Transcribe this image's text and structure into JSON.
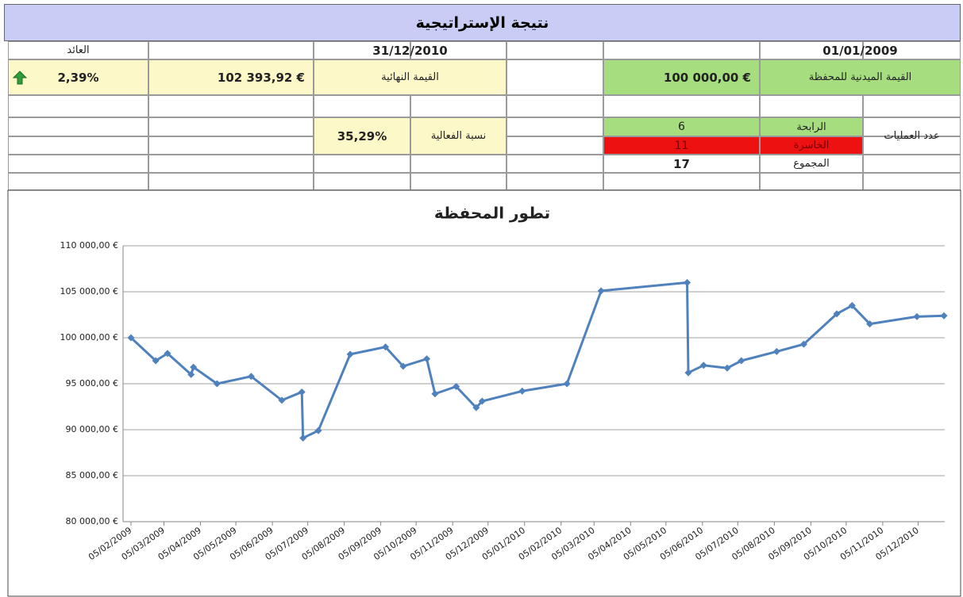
{
  "header": {
    "title": "نتيجة الإستراتيجية"
  },
  "table": {
    "return_label": "العائد",
    "end_date": "31/12/2010",
    "start_date": "01/01/2009",
    "return_value": "2,39%",
    "final_value": "102 393,92 €",
    "final_label": "القيمة النهائية",
    "initial_value": "100 000,00 €",
    "initial_label": "القيمة الميدنية للمحفظة",
    "efficiency_value": "35,29%",
    "efficiency_label": "نسبة الفعالية",
    "trades_label": "عدد العمليات",
    "winning_label": "الرابحة",
    "winning_count": 6,
    "losing_label": "الخاسرة",
    "losing_count": 11,
    "total_label": "المجموع",
    "total_count": 17
  },
  "chart_data": {
    "type": "line",
    "title": "تطور المحفظة",
    "color": "#4f81bd",
    "grid": true,
    "x": [
      "05/02/2009",
      "26/02/2009",
      "08/03/2009",
      "28/03/2009",
      "30/03/2009",
      "19/04/2009",
      "18/05/2009",
      "13/06/2009",
      "30/06/2009",
      "01/07/2009",
      "14/07/2009",
      "10/08/2009",
      "09/09/2009",
      "24/09/2009",
      "14/10/2009",
      "21/10/2009",
      "08/11/2009",
      "25/11/2009",
      "30/11/2009",
      "03/01/2010",
      "10/02/2010",
      "11/03/2010",
      "23/05/2010",
      "24/05/2010",
      "06/06/2010",
      "26/06/2010",
      "08/07/2010",
      "07/08/2010",
      "30/08/2010",
      "27/09/2010",
      "10/10/2010",
      "25/10/2010",
      "04/12/2010",
      "27/12/2010"
    ],
    "values": [
      100000,
      97500,
      98300,
      96000,
      96800,
      95000,
      95800,
      93200,
      94100,
      89100,
      89900,
      98200,
      99000,
      96900,
      97700,
      93900,
      94700,
      92400,
      93100,
      94200,
      95000,
      105100,
      106000,
      96200,
      97000,
      96700,
      97500,
      98500,
      99300,
      102600,
      103500,
      101500,
      102300,
      102393.92
    ],
    "xlim": [
      "05/02/2009",
      "31/12/2010"
    ],
    "xticks": [
      "05/02/2009",
      "05/03/2009",
      "05/04/2009",
      "05/05/2009",
      "05/06/2009",
      "05/07/2009",
      "05/08/2009",
      "05/09/2009",
      "05/10/2009",
      "05/11/2009",
      "05/12/2009",
      "05/01/2010",
      "05/02/2010",
      "05/03/2010",
      "05/04/2010",
      "05/05/2010",
      "05/06/2010",
      "05/07/2010",
      "05/08/2010",
      "05/09/2010",
      "05/10/2010",
      "05/11/2010",
      "05/12/2010"
    ],
    "ylim": [
      80000,
      110000
    ],
    "yticks": [
      {
        "value": 80000,
        "label": "80 000,00 €"
      },
      {
        "value": 85000,
        "label": "85 000,00 €"
      },
      {
        "value": 90000,
        "label": "90 000,00 €"
      },
      {
        "value": 95000,
        "label": "95 000,00 €"
      },
      {
        "value": 100000,
        "label": "100 000,00 €"
      },
      {
        "value": 105000,
        "label": "105 000,00 €"
      },
      {
        "value": 110000,
        "label": "110 000,00 €"
      }
    ]
  }
}
